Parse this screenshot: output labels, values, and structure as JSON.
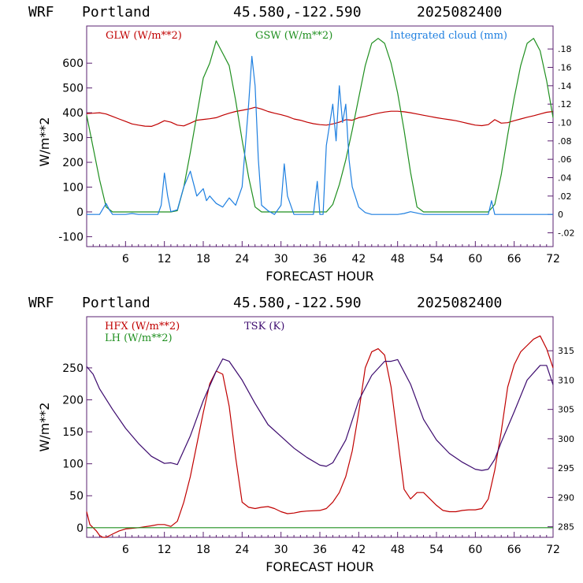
{
  "panels": [
    {
      "header": {
        "model": "WRF",
        "location": "Portland",
        "coords": "45.580,-122.590",
        "date": "2025082400"
      },
      "legend": [
        {
          "label": "GLW (W/m**2)",
          "color": "#c00000"
        },
        {
          "label": "GSW (W/m**2)",
          "color": "#1f8f1f"
        },
        {
          "label": "Integrated cloud (mm)",
          "color": "#1e7fe0"
        }
      ],
      "ylabel": "W/m**2",
      "xlabel": "FORECAST HOUR",
      "xticks": [
        "6",
        "12",
        "18",
        "24",
        "30",
        "36",
        "42",
        "48",
        "54",
        "60",
        "66",
        "72"
      ],
      "yticks_left": [
        "-100",
        "0",
        "100",
        "200",
        "300",
        "400",
        "500",
        "600"
      ],
      "yticks_right": [
        "-.02",
        "0",
        ".02",
        ".04",
        ".06",
        ".08",
        ".10",
        ".12",
        ".14",
        ".16",
        ".18"
      ],
      "frame_color": "#5a2070"
    },
    {
      "header": {
        "model": "WRF",
        "location": "Portland",
        "coords": "45.580,-122.590",
        "date": "2025082400"
      },
      "legend": [
        {
          "label": "HFX (W/m**2)",
          "color": "#c00000"
        },
        {
          "label": "LH  (W/m**2)",
          "color": "#1f8f1f"
        },
        {
          "label": "TSK (K)",
          "color": "#3c0a6e"
        }
      ],
      "ylabel": "W/m**2",
      "xlabel": "FORECAST HOUR",
      "xticks": [
        "6",
        "12",
        "18",
        "24",
        "30",
        "36",
        "42",
        "48",
        "54",
        "60",
        "66",
        "72"
      ],
      "yticks_left": [
        "0",
        "50",
        "100",
        "150",
        "200",
        "250"
      ],
      "yticks_right": [
        "285",
        "290",
        "295",
        "300",
        "305",
        "310",
        "315"
      ],
      "frame_color": "#5a2070"
    }
  ],
  "chart_data": [
    {
      "type": "line",
      "title": "WRF Portland 45.580,-122.590 2025082400",
      "xlabel": "FORECAST HOUR",
      "ylabel": "W/m**2",
      "xlim": [
        0,
        72
      ],
      "ylim": [
        -140,
        750
      ],
      "ylim_right": [
        -0.035,
        0.205
      ],
      "series": [
        {
          "name": "GLW (W/m**2)",
          "axis": "left",
          "color": "#c00000",
          "x": [
            0,
            1,
            2,
            3,
            4,
            5,
            6,
            7,
            8,
            9,
            10,
            11,
            12,
            13,
            14,
            15,
            16,
            17,
            18,
            19,
            20,
            21,
            22,
            23,
            24,
            25,
            26,
            27,
            28,
            29,
            30,
            31,
            32,
            33,
            34,
            35,
            36,
            37,
            38,
            39,
            40,
            41,
            42,
            43,
            44,
            45,
            46,
            47,
            48,
            49,
            50,
            51,
            52,
            53,
            54,
            55,
            56,
            57,
            58,
            59,
            60,
            61,
            62,
            63,
            64,
            65,
            66,
            67,
            68,
            69,
            70,
            71,
            72
          ],
          "y": [
            397,
            398,
            400,
            395,
            385,
            375,
            365,
            355,
            350,
            346,
            345,
            355,
            368,
            362,
            350,
            347,
            358,
            370,
            373,
            376,
            380,
            390,
            398,
            405,
            410,
            415,
            422,
            415,
            405,
            398,
            392,
            385,
            375,
            370,
            362,
            356,
            352,
            350,
            355,
            362,
            372,
            370,
            380,
            385,
            392,
            398,
            403,
            406,
            406,
            404,
            400,
            395,
            390,
            385,
            380,
            376,
            372,
            368,
            362,
            356,
            350,
            348,
            352,
            372,
            358,
            360,
            368,
            375,
            382,
            388,
            395,
            402,
            405
          ]
        },
        {
          "name": "GSW (W/m**2)",
          "axis": "left",
          "color": "#1f8f1f",
          "x": [
            0,
            1,
            2,
            3,
            4,
            5,
            6,
            7,
            8,
            9,
            10,
            11,
            12,
            13,
            14,
            15,
            16,
            17,
            18,
            19,
            20,
            21,
            22,
            23,
            24,
            25,
            26,
            27,
            28,
            29,
            30,
            31,
            32,
            33,
            34,
            35,
            36,
            37,
            38,
            39,
            40,
            41,
            42,
            43,
            44,
            45,
            46,
            47,
            48,
            49,
            50,
            51,
            52,
            53,
            54,
            55,
            56,
            57,
            58,
            59,
            60,
            61,
            62,
            63,
            64,
            65,
            66,
            67,
            68,
            69,
            70,
            71,
            72
          ],
          "y": [
            390,
            260,
            130,
            20,
            0,
            0,
            0,
            0,
            0,
            0,
            0,
            0,
            0,
            0,
            5,
            100,
            240,
            390,
            540,
            600,
            690,
            640,
            590,
            450,
            290,
            140,
            20,
            0,
            0,
            0,
            0,
            0,
            0,
            0,
            0,
            0,
            0,
            0,
            30,
            110,
            210,
            330,
            460,
            590,
            680,
            700,
            680,
            600,
            480,
            330,
            160,
            20,
            0,
            0,
            0,
            0,
            0,
            0,
            0,
            0,
            0,
            0,
            0,
            30,
            150,
            310,
            460,
            590,
            680,
            700,
            650,
            530,
            380
          ]
        },
        {
          "name": "Integrated cloud (mm)",
          "axis": "right",
          "color": "#1e7fe0",
          "x": [
            0,
            2,
            3,
            3.5,
            4,
            5,
            6,
            7,
            8,
            10,
            11,
            11.5,
            12,
            12.5,
            13,
            14,
            15,
            16,
            17,
            18,
            18.5,
            19,
            20,
            21,
            22,
            23,
            24,
            25,
            25.5,
            26,
            26.5,
            27,
            28,
            29,
            30,
            30.5,
            31,
            32,
            33,
            34,
            35,
            35.6,
            36,
            36.5,
            37,
            38,
            38.5,
            39,
            39.5,
            40,
            40.5,
            41,
            42,
            43,
            44,
            46,
            48,
            49,
            50,
            52,
            54,
            58,
            60,
            61,
            62,
            62.5,
            63,
            64,
            66,
            68,
            70,
            72
          ],
          "y": [
            0,
            0,
            0.012,
            0.005,
            0,
            0,
            0,
            0.001,
            0,
            0,
            0,
            0.01,
            0.045,
            0.02,
            0.003,
            0.005,
            0.03,
            0.047,
            0.02,
            0.028,
            0.015,
            0.02,
            0.012,
            0.008,
            0.018,
            0.01,
            0.03,
            0.12,
            0.172,
            0.14,
            0.06,
            0.01,
            0.004,
            0,
            0.01,
            0.055,
            0.02,
            0,
            0,
            0,
            0,
            0.036,
            0,
            0,
            0.075,
            0.12,
            0.08,
            0.14,
            0.1,
            0.12,
            0.06,
            0.03,
            0.008,
            0.002,
            0,
            0,
            0,
            0.001,
            0.003,
            0,
            0,
            0,
            0,
            0,
            0,
            0.015,
            0,
            0,
            0,
            0,
            0,
            0
          ]
        }
      ]
    },
    {
      "type": "line",
      "title": "WRF Portland 45.580,-122.590 2025082400",
      "xlabel": "FORECAST HOUR",
      "ylabel": "W/m**2",
      "xlim": [
        0,
        72
      ],
      "ylim": [
        -15,
        330
      ],
      "ylim_right": [
        283.2,
        320.8
      ],
      "series": [
        {
          "name": "HFX (W/m**2)",
          "axis": "left",
          "color": "#c00000",
          "x": [
            0,
            0.5,
            1,
            1.5,
            2,
            2.5,
            3,
            4,
            5,
            6,
            8,
            10,
            11,
            12,
            13,
            14,
            15,
            16,
            17,
            18,
            19,
            20,
            21,
            22,
            23,
            24,
            25,
            26,
            27,
            28,
            29,
            30,
            31,
            32,
            33,
            34,
            36,
            37,
            38,
            39,
            40,
            41,
            42,
            43,
            44,
            45,
            46,
            47,
            48,
            49,
            50,
            51,
            52,
            53,
            54,
            55,
            56,
            57,
            58,
            59,
            60,
            61,
            62,
            63,
            64,
            65,
            66,
            67,
            68,
            69,
            70,
            71,
            72
          ],
          "y": [
            25,
            5,
            0,
            -5,
            -12,
            -15,
            -16,
            -10,
            -5,
            -2,
            0,
            3,
            5,
            5,
            2,
            10,
            40,
            80,
            130,
            180,
            225,
            245,
            240,
            190,
            110,
            40,
            32,
            30,
            32,
            33,
            30,
            25,
            22,
            23,
            25,
            26,
            27,
            30,
            40,
            55,
            80,
            120,
            180,
            250,
            275,
            280,
            270,
            220,
            140,
            60,
            45,
            55,
            55,
            45,
            35,
            27,
            25,
            25,
            27,
            28,
            28,
            30,
            45,
            90,
            150,
            220,
            255,
            275,
            285,
            295,
            300,
            280,
            250
          ]
        },
        {
          "name": "LH  (W/m**2)",
          "axis": "left",
          "color": "#1f8f1f",
          "x": [
            0,
            72
          ],
          "y": [
            0,
            0
          ]
        },
        {
          "name": "TSK (K)",
          "axis": "right",
          "color": "#3c0a6e",
          "x": [
            0,
            1,
            2,
            4,
            6,
            8,
            10,
            12,
            13,
            14,
            16,
            18,
            20,
            21,
            22,
            24,
            26,
            28,
            30,
            32,
            34,
            36,
            37,
            38,
            40,
            42,
            44,
            46,
            47,
            48,
            50,
            52,
            54,
            56,
            58,
            60,
            61,
            62,
            63,
            64,
            66,
            68,
            70,
            71,
            72
          ],
          "y": [
            312.3,
            311,
            308.5,
            305,
            301.8,
            299.2,
            297,
            295.8,
            295.9,
            295.6,
            300.5,
            306.5,
            311.5,
            313.6,
            313.2,
            310,
            306,
            302.4,
            300.4,
            298.4,
            296.8,
            295.5,
            295.3,
            295.9,
            299.8,
            306.5,
            310.8,
            313.2,
            313.2,
            313.5,
            309.3,
            303.3,
            299.8,
            297.5,
            296,
            294.8,
            294.6,
            294.8,
            296.5,
            299.4,
            304.6,
            310,
            312.5,
            312.5,
            309.2
          ]
        }
      ]
    }
  ]
}
